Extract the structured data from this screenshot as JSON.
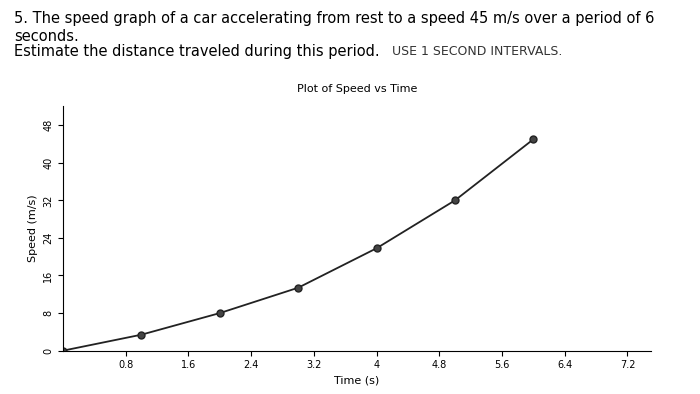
{
  "chart_data": {
    "type": "line",
    "title": "Plot of Speed vs Time",
    "annotations": [
      "5. The speed graph of a car accelerating from rest to a speed 45 m/s over a period of 6 seconds.",
      "Estimate the distance traveled during this period.",
      "USE 1 SECOND INTERVALS."
    ],
    "x_label": "Time (s)",
    "y_label": "Speed (m/s)",
    "x": [
      0,
      1,
      2,
      3,
      4,
      5,
      6
    ],
    "values": [
      0,
      3.4,
      8,
      13.4,
      21.8,
      32,
      45
    ],
    "color": "#222222",
    "marker": "o",
    "line_style": "solid",
    "xlim": [
      0,
      7.5
    ],
    "xticks": [
      0.8,
      1.6,
      2.4,
      3.2,
      4,
      4.8,
      5.6,
      6.4,
      7.2
    ],
    "ylim": [
      0,
      52
    ],
    "yticks": [
      0,
      8,
      16,
      24,
      32,
      40,
      48
    ],
    "grid": false
  }
}
